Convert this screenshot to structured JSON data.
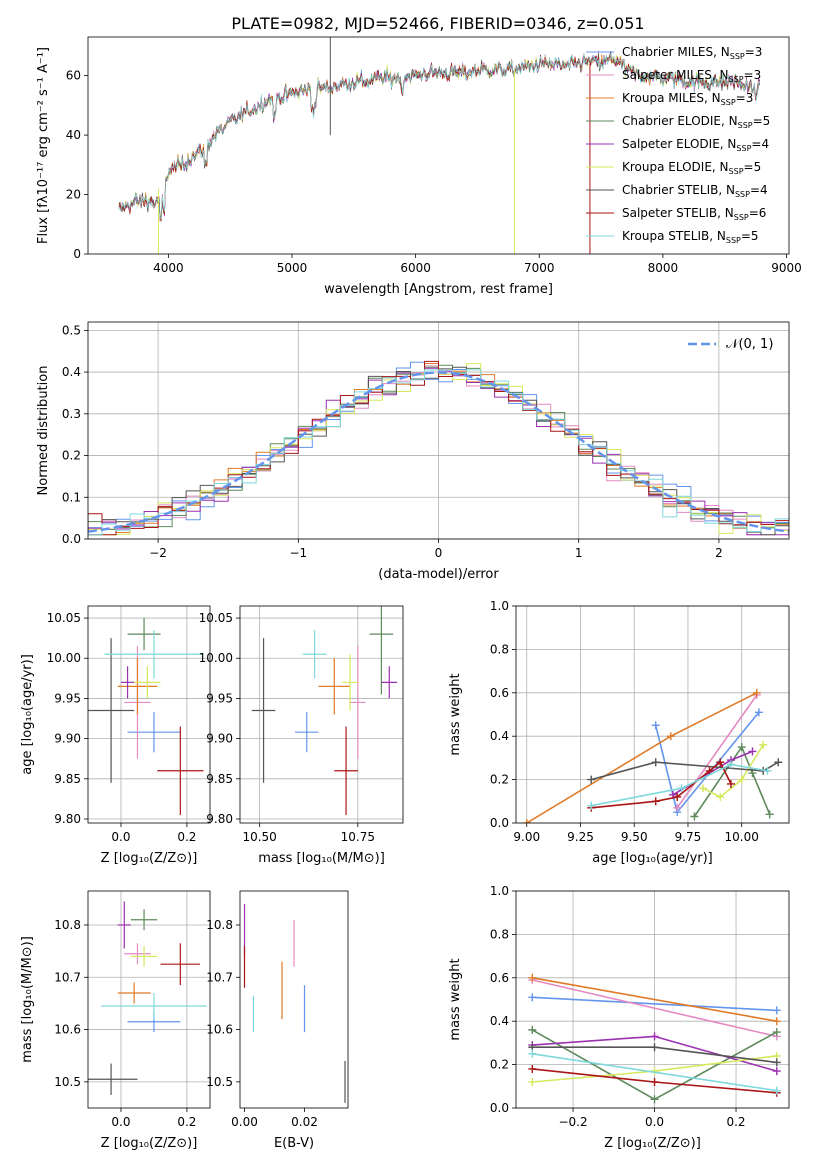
{
  "figure_title": "PLATE=0982, MJD=52466, FIBERID=0346, z=0.051",
  "colors": {
    "chabrier_miles": "#6495ed",
    "salpeter_miles": "#e48ac2",
    "kroupa_miles": "#e07b28",
    "chabrier_elodie": "#5e8a5c",
    "salpeter_elodie": "#9b30b0",
    "kroupa_elodie": "#d6e85e",
    "chabrier_stelib": "#555555",
    "salpeter_stelib": "#aa1515",
    "kroupa_stelib": "#7fd8dc",
    "normal_curve": "#6495ed"
  },
  "chart_data": [
    {
      "id": "spectrum",
      "type": "line",
      "title": "PLATE=0982, MJD=52466, FIBERID=0346, z=0.051",
      "xlabel": "wavelength [Angstrom, rest frame]",
      "ylabel": "Flux [fλ10⁻¹⁷ erg cm⁻² s⁻¹ A⁻¹]",
      "xlim": [
        3350,
        9020
      ],
      "ylim": [
        0,
        73
      ],
      "xticks": [
        4000,
        5000,
        6000,
        7000,
        8000,
        9000
      ],
      "yticks": [
        0,
        20,
        40,
        60
      ],
      "legend_position": "right",
      "continuum": [
        [
          3600,
          15
        ],
        [
          3700,
          17
        ],
        [
          3800,
          18
        ],
        [
          3900,
          17
        ],
        [
          3950,
          19
        ],
        [
          4000,
          28
        ],
        [
          4100,
          30
        ],
        [
          4200,
          33
        ],
        [
          4300,
          36
        ],
        [
          4400,
          41
        ],
        [
          4500,
          44
        ],
        [
          4600,
          47
        ],
        [
          4700,
          49
        ],
        [
          4800,
          52
        ],
        [
          4900,
          53
        ],
        [
          5000,
          54
        ],
        [
          5100,
          55
        ],
        [
          5200,
          56
        ],
        [
          5300,
          56
        ],
        [
          5400,
          57
        ],
        [
          5500,
          58
        ],
        [
          5600,
          58
        ],
        [
          5700,
          59
        ],
        [
          5800,
          59
        ],
        [
          5900,
          60
        ],
        [
          6000,
          60
        ],
        [
          6100,
          61
        ],
        [
          6200,
          61
        ],
        [
          6300,
          61
        ],
        [
          6400,
          61
        ],
        [
          6500,
          62
        ],
        [
          6600,
          62
        ],
        [
          6700,
          62
        ],
        [
          6800,
          62
        ],
        [
          6900,
          63
        ],
        [
          7000,
          64
        ],
        [
          7100,
          64
        ],
        [
          7200,
          63
        ],
        [
          7300,
          64
        ],
        [
          7400,
          65
        ],
        [
          7500,
          64
        ],
        [
          7600,
          66
        ],
        [
          7700,
          62
        ],
        [
          7800,
          60
        ],
        [
          7900,
          60
        ],
        [
          8000,
          59
        ],
        [
          8100,
          59
        ],
        [
          8200,
          58
        ],
        [
          8300,
          58
        ],
        [
          8400,
          58
        ],
        [
          8500,
          58
        ],
        [
          8600,
          58
        ],
        [
          8700,
          56
        ],
        [
          8790,
          55
        ]
      ],
      "legend": [
        {
          "label": "Chabrier MILES, N",
          "sub": "SSP",
          "suffix": "=3",
          "color": "#6495ed"
        },
        {
          "label": "Salpeter MILES, N",
          "sub": "SSP",
          "suffix": "=3",
          "color": "#e48ac2"
        },
        {
          "label": "Kroupa MILES, N",
          "sub": "SSP",
          "suffix": "=3",
          "color": "#e07b28"
        },
        {
          "label": "Chabrier ELODIE, N",
          "sub": "SSP",
          "suffix": "=5",
          "color": "#5e8a5c"
        },
        {
          "label": "Salpeter ELODIE, N",
          "sub": "SSP",
          "suffix": "=4",
          "color": "#9b30b0"
        },
        {
          "label": "Kroupa ELODIE, N",
          "sub": "SSP",
          "suffix": "=5",
          "color": "#d6e85e"
        },
        {
          "label": "Chabrier STELIB, N",
          "sub": "SSP",
          "suffix": "=4",
          "color": "#555555"
        },
        {
          "label": "Salpeter STELIB, N",
          "sub": "SSP",
          "suffix": "=6",
          "color": "#aa1515"
        },
        {
          "label": "Kroupa STELIB, N",
          "sub": "SSP",
          "suffix": "=5",
          "color": "#7fd8dc"
        }
      ]
    },
    {
      "id": "residuals",
      "type": "histogram",
      "xlabel": "(data-model)/error",
      "ylabel": "Normed distribution",
      "xlim": [
        -2.5,
        2.5
      ],
      "ylim": [
        0,
        0.52
      ],
      "xticks": [
        -2,
        -1,
        0,
        1,
        2
      ],
      "yticks": [
        0.0,
        0.1,
        0.2,
        0.3,
        0.4,
        0.5
      ],
      "grid": true,
      "legend_position": "top-right",
      "normal_label": "𝒩(0, 1)",
      "bin_width": 0.1
    },
    {
      "id": "age_vs_Z",
      "type": "errorbar",
      "xlabel": "Z [log₁₀(Z/Z⊙)]",
      "ylabel": "age  [log₁₀(age/yr)]",
      "xlim": [
        -0.1,
        0.27
      ],
      "ylim": [
        9.795,
        10.065
      ],
      "xticks": [
        0.0,
        0.2
      ],
      "yticks": [
        9.8,
        9.85,
        9.9,
        9.95,
        10.0,
        10.05
      ],
      "grid": true,
      "points": [
        {
          "x": 0.1,
          "y": 9.908,
          "xerr": 0.08,
          "yerr": 0.025,
          "color": "#6495ed"
        },
        {
          "x": 0.05,
          "y": 9.945,
          "xerr": 0.04,
          "yerr": 0.07,
          "color": "#e48ac2"
        },
        {
          "x": 0.05,
          "y": 9.965,
          "xerr": 0.06,
          "yerr": 0.035,
          "color": "#e07b28"
        },
        {
          "x": 0.07,
          "y": 10.03,
          "xerr": 0.05,
          "yerr": 0.02,
          "color": "#5e8a5c"
        },
        {
          "x": 0.02,
          "y": 9.97,
          "xerr": 0.02,
          "yerr": 0.02,
          "color": "#9b30b0"
        },
        {
          "x": 0.08,
          "y": 9.97,
          "xerr": 0.04,
          "yerr": 0.02,
          "color": "#d6e85e"
        },
        {
          "x": -0.03,
          "y": 9.935,
          "xerr": 0.07,
          "yerr": 0.09,
          "color": "#555555"
        },
        {
          "x": 0.18,
          "y": 9.86,
          "xerr": 0.07,
          "yerr": 0.055,
          "color": "#aa1515"
        },
        {
          "x": 0.1,
          "y": 10.005,
          "xerr": 0.15,
          "yerr": 0.03,
          "color": "#7fd8dc"
        }
      ]
    },
    {
      "id": "age_vs_mass",
      "type": "errorbar",
      "xlabel": "mass [log₁₀(M/M⊙)]",
      "ylabel": "",
      "xlim": [
        10.45,
        10.865
      ],
      "ylim": [
        9.795,
        10.065
      ],
      "xticks": [
        10.5,
        10.75
      ],
      "yticks": [
        9.8,
        9.85,
        9.9,
        9.95,
        10.0,
        10.05
      ],
      "grid": true,
      "points": [
        {
          "x": 10.62,
          "y": 9.908,
          "xerr": 0.03,
          "yerr": 0.025,
          "color": "#6495ed"
        },
        {
          "x": 10.75,
          "y": 9.945,
          "xerr": 0.02,
          "yerr": 0.07,
          "color": "#e48ac2"
        },
        {
          "x": 10.69,
          "y": 9.965,
          "xerr": 0.04,
          "yerr": 0.035,
          "color": "#e07b28"
        },
        {
          "x": 10.81,
          "y": 10.03,
          "xerr": 0.03,
          "yerr": 0.075,
          "color": "#5e8a5c"
        },
        {
          "x": 10.83,
          "y": 9.97,
          "xerr": 0.02,
          "yerr": 0.02,
          "color": "#9b30b0"
        },
        {
          "x": 10.73,
          "y": 9.97,
          "xerr": 0.02,
          "yerr": 0.035,
          "color": "#d6e85e"
        },
        {
          "x": 10.51,
          "y": 9.935,
          "xerr": 0.03,
          "yerr": 0.09,
          "color": "#555555"
        },
        {
          "x": 10.72,
          "y": 9.86,
          "xerr": 0.03,
          "yerr": 0.055,
          "color": "#aa1515"
        },
        {
          "x": 10.64,
          "y": 10.005,
          "xerr": 0.03,
          "yerr": 0.03,
          "color": "#7fd8dc"
        }
      ]
    },
    {
      "id": "mass_weight_vs_age",
      "type": "line",
      "xlabel": "age  [log₁₀(age/yr)]",
      "ylabel": "mass weight",
      "xlim": [
        8.95,
        10.22
      ],
      "ylim": [
        0,
        1
      ],
      "xticks": [
        9.0,
        9.25,
        9.5,
        9.75,
        10.0
      ],
      "yticks": [
        0.0,
        0.2,
        0.4,
        0.6,
        0.8,
        1.0
      ],
      "grid": true,
      "series": [
        {
          "color": "#6495ed",
          "x": [
            9.6,
            9.7,
            10.08
          ],
          "y": [
            0.45,
            0.05,
            0.51
          ]
        },
        {
          "color": "#e48ac2",
          "x": [
            9.7,
            10.07
          ],
          "y": [
            0.07,
            0.59
          ]
        },
        {
          "color": "#e07b28",
          "x": [
            9.0,
            9.67,
            10.07
          ],
          "y": [
            0.0,
            0.4,
            0.6
          ]
        },
        {
          "color": "#5e8a5c",
          "x": [
            9.78,
            10.0,
            10.05,
            10.13
          ],
          "y": [
            0.03,
            0.35,
            0.23,
            0.04
          ]
        },
        {
          "color": "#9b30b0",
          "x": [
            9.68,
            9.95,
            10.05
          ],
          "y": [
            0.13,
            0.29,
            0.33
          ]
        },
        {
          "color": "#d6e85e",
          "x": [
            9.82,
            9.9,
            10.0,
            10.1
          ],
          "y": [
            0.16,
            0.12,
            0.2,
            0.36
          ]
        },
        {
          "color": "#555555",
          "x": [
            9.3,
            9.6,
            10.1,
            10.17
          ],
          "y": [
            0.2,
            0.28,
            0.24,
            0.28
          ]
        },
        {
          "color": "#aa1515",
          "x": [
            9.3,
            9.6,
            9.7,
            9.85,
            9.9,
            9.95
          ],
          "y": [
            0.07,
            0.1,
            0.12,
            0.24,
            0.28,
            0.18
          ]
        },
        {
          "color": "#7fd8dc",
          "x": [
            9.3,
            9.72,
            9.95,
            10.12
          ],
          "y": [
            0.08,
            0.16,
            0.27,
            0.24
          ]
        }
      ]
    },
    {
      "id": "mass_vs_Z",
      "type": "errorbar",
      "xlabel": "Z [log₁₀(Z/Z⊙)]",
      "ylabel": "mass [log₁₀(M/M⊙)]",
      "xlim": [
        -0.1,
        0.27
      ],
      "ylim": [
        10.45,
        10.865
      ],
      "xticks": [
        0.0,
        0.2
      ],
      "yticks": [
        10.5,
        10.6,
        10.7,
        10.8
      ],
      "grid": true,
      "points": [
        {
          "x": 0.1,
          "y": 10.615,
          "xerr": 0.08,
          "yerr": 0.02,
          "color": "#6495ed"
        },
        {
          "x": 0.05,
          "y": 10.745,
          "xerr": 0.04,
          "yerr": 0.02,
          "color": "#e48ac2"
        },
        {
          "x": 0.04,
          "y": 10.67,
          "xerr": 0.05,
          "yerr": 0.02,
          "color": "#e07b28"
        },
        {
          "x": 0.07,
          "y": 10.81,
          "xerr": 0.04,
          "yerr": 0.02,
          "color": "#5e8a5c"
        },
        {
          "x": 0.01,
          "y": 10.8,
          "xerr": 0.02,
          "yerr": 0.045,
          "color": "#9b30b0"
        },
        {
          "x": 0.07,
          "y": 10.74,
          "xerr": 0.04,
          "yerr": 0.02,
          "color": "#d6e85e"
        },
        {
          "x": -0.03,
          "y": 10.505,
          "xerr": 0.08,
          "yerr": 0.03,
          "color": "#555555"
        },
        {
          "x": 0.18,
          "y": 10.725,
          "xerr": 0.06,
          "yerr": 0.04,
          "color": "#aa1515"
        },
        {
          "x": 0.1,
          "y": 10.645,
          "xerr": 0.16,
          "yerr": 0.025,
          "color": "#7fd8dc"
        }
      ]
    },
    {
      "id": "mass_vs_ebv",
      "type": "errorbar",
      "xlabel": "E(B-V)",
      "ylabel": "",
      "xlim": [
        -0.0015,
        0.0345
      ],
      "ylim": [
        10.45,
        10.865
      ],
      "xticks": [
        0.0,
        0.02
      ],
      "yticks": [
        10.5,
        10.6,
        10.7,
        10.8
      ],
      "grid": false,
      "points": [
        {
          "x": 0.02,
          "y": 10.64,
          "xerr": 0,
          "yerr": 0.045,
          "color": "#6495ed"
        },
        {
          "x": 0.0165,
          "y": 10.765,
          "xerr": 0,
          "yerr": 0.045,
          "color": "#e48ac2"
        },
        {
          "x": 0.0125,
          "y": 10.675,
          "xerr": 0,
          "yerr": 0.055,
          "color": "#e07b28"
        },
        {
          "x": 0.0,
          "y": 10.79,
          "xerr": 0,
          "yerr": 0.05,
          "color": "#9b30b0"
        },
        {
          "x": 0.0,
          "y": 10.72,
          "xerr": 0,
          "yerr": 0.04,
          "color": "#aa1515"
        },
        {
          "x": 0.003,
          "y": 10.63,
          "xerr": 0,
          "yerr": 0.035,
          "color": "#7fd8dc"
        },
        {
          "x": 0.0335,
          "y": 10.5,
          "xerr": 0,
          "yerr": 0.04,
          "color": "#555555"
        }
      ]
    },
    {
      "id": "mass_weight_vs_Z",
      "type": "line",
      "xlabel": "Z [log₁₀(Z/Z⊙)]",
      "ylabel": "mass weight",
      "xlim": [
        -0.34,
        0.33
      ],
      "ylim": [
        0,
        1
      ],
      "xticks": [
        -0.2,
        0.0,
        0.2
      ],
      "yticks": [
        0.0,
        0.2,
        0.4,
        0.6,
        0.8,
        1.0
      ],
      "grid": true,
      "series": [
        {
          "color": "#6495ed",
          "x": [
            -0.3,
            0.3
          ],
          "y": [
            0.51,
            0.45
          ]
        },
        {
          "color": "#e48ac2",
          "x": [
            -0.3,
            0.3
          ],
          "y": [
            0.59,
            0.33
          ]
        },
        {
          "color": "#e07b28",
          "x": [
            -0.3,
            0.3
          ],
          "y": [
            0.6,
            0.4
          ]
        },
        {
          "color": "#5e8a5c",
          "x": [
            -0.3,
            0.0,
            0.3
          ],
          "y": [
            0.36,
            0.04,
            0.35
          ]
        },
        {
          "color": "#9b30b0",
          "x": [
            -0.3,
            0.0,
            0.3
          ],
          "y": [
            0.29,
            0.33,
            0.17
          ]
        },
        {
          "color": "#d6e85e",
          "x": [
            -0.3,
            0.0,
            0.3
          ],
          "y": [
            0.12,
            0.17,
            0.24
          ]
        },
        {
          "color": "#555555",
          "x": [
            -0.3,
            0.0,
            0.3
          ],
          "y": [
            0.28,
            0.28,
            0.21
          ]
        },
        {
          "color": "#aa1515",
          "x": [
            -0.3,
            0.0,
            0.3
          ],
          "y": [
            0.18,
            0.12,
            0.07
          ]
        },
        {
          "color": "#7fd8dc",
          "x": [
            -0.3,
            0.3
          ],
          "y": [
            0.25,
            0.08
          ]
        }
      ]
    }
  ]
}
